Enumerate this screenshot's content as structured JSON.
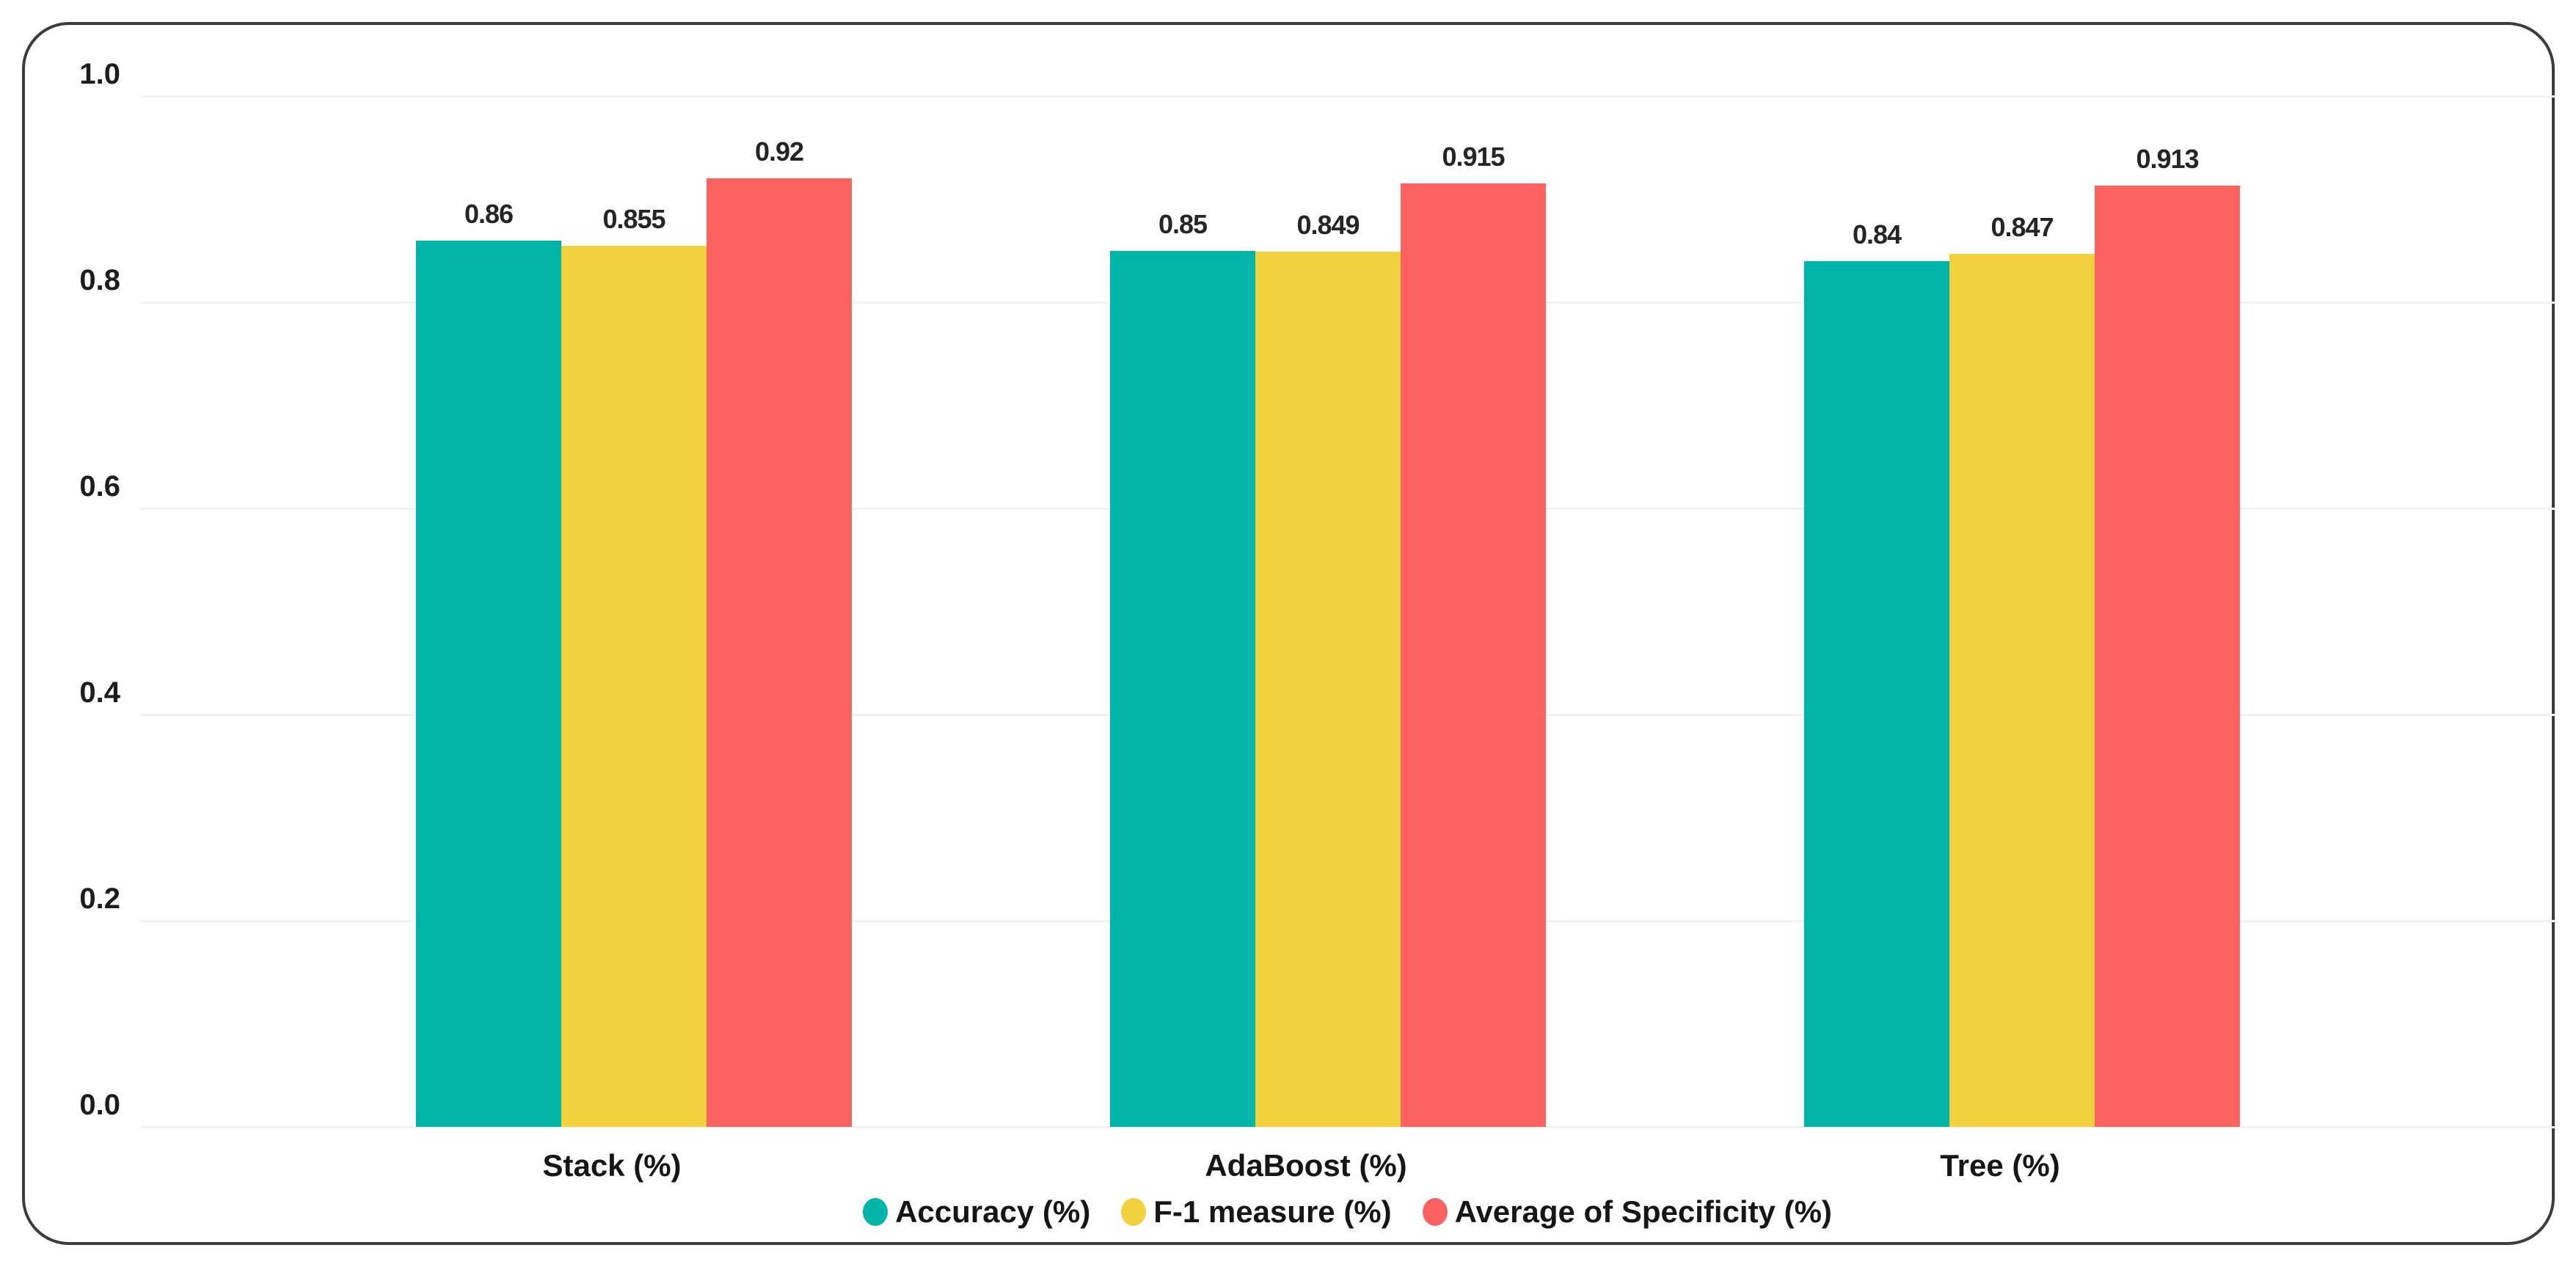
{
  "chart_data": {
    "type": "bar",
    "title": "",
    "categories": [
      "Stack (%)",
      "AdaBoost (%)",
      "Tree (%)"
    ],
    "series": [
      {
        "name": "Accuracy (%)",
        "color": "#00B5A8",
        "values": [
          0.86,
          0.85,
          0.84
        ],
        "labels": [
          "0.86",
          "0.85",
          "0.84"
        ]
      },
      {
        "name": "F-1 measure (%)",
        "color": "#F2D13E",
        "values": [
          0.855,
          0.849,
          0.847
        ],
        "labels": [
          "0.855",
          "0.849",
          "0.847"
        ]
      },
      {
        "name": "Average of Specificity (%)",
        "color": "#FC6360",
        "values": [
          0.92,
          0.915,
          0.913
        ],
        "labels": [
          "0.92",
          "0.915",
          "0.913"
        ]
      }
    ],
    "y_axis": {
      "min": 0.0,
      "max": 1.0,
      "ticks": [
        "1.0",
        "0.8",
        "0.6",
        "0.4",
        "0.2",
        "0.0"
      ],
      "tick_values": [
        1.0,
        0.8,
        0.6,
        0.4,
        0.2,
        0.0
      ]
    },
    "xlabel": "",
    "ylabel": "",
    "grid": true,
    "legend_position": "bottom"
  },
  "style_colors": {
    "card_border": "#3c3c3c",
    "gridline": "#f1f1f1",
    "text": "#1d1d1d",
    "background": "#ffffff"
  }
}
